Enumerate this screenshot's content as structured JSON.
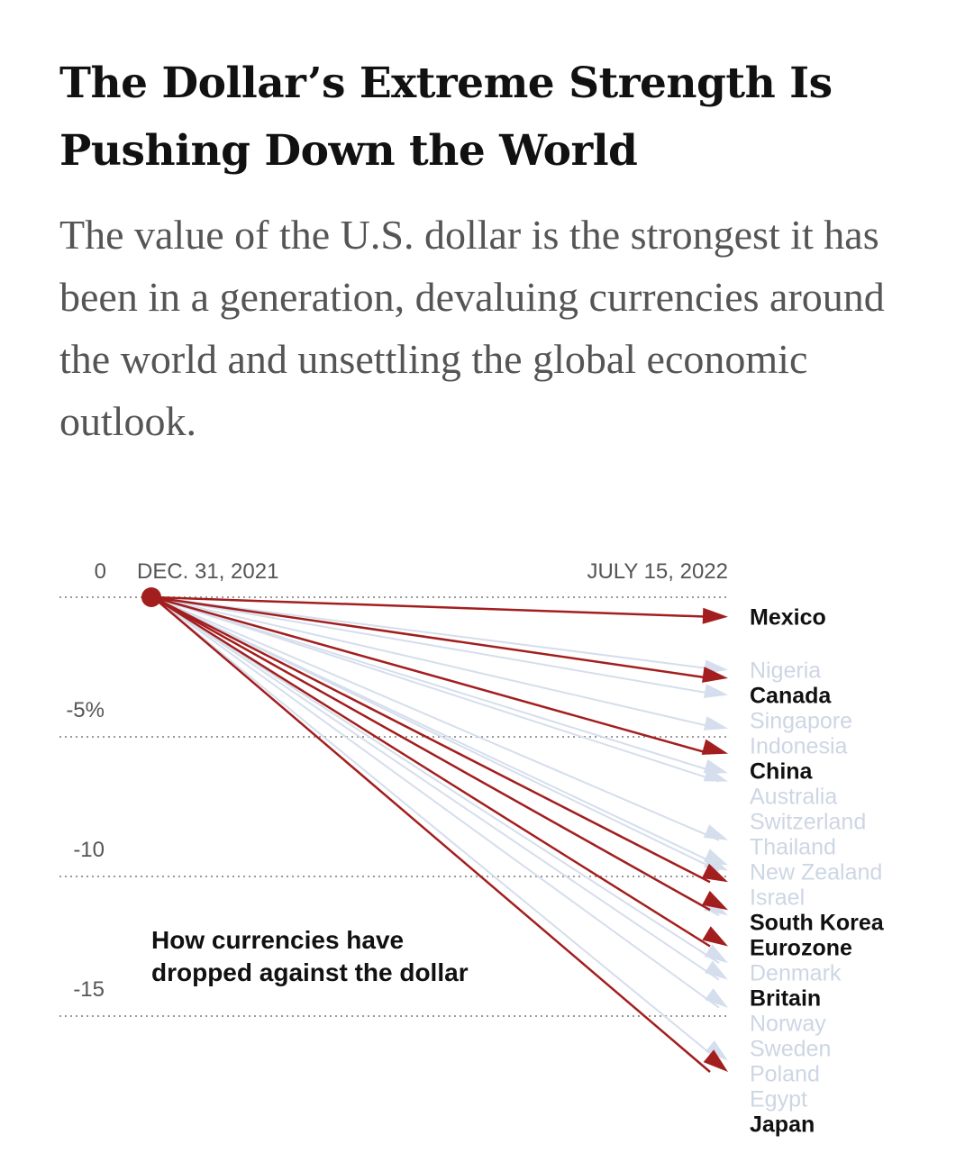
{
  "title": "The Dollar’s Extreme Strength Is Pushing Down the World",
  "subtitle": "The value of the U.S. dollar is the strongest it has been in a generation, devaluing currencies around the world and unsettling the global economic outlook.",
  "chart_data": {
    "type": "slope",
    "title": "How currencies have dropped against the dollar",
    "x": [
      "DEC. 31, 2021",
      "JULY 15, 2022"
    ],
    "start_value": 0,
    "yticks": [
      {
        "v": 0,
        "label": "0"
      },
      {
        "v": -5,
        "label": "-5%"
      },
      {
        "v": -10,
        "label": "-10"
      },
      {
        "v": -15,
        "label": "-15"
      }
    ],
    "ylim": [
      -17.5,
      0
    ],
    "colors": {
      "highlight": "#a31e1e",
      "other": "#d5deec",
      "highlight_text": "#111111",
      "other_text": "#cdd6e4"
    },
    "series": [
      {
        "name": "Mexico",
        "value": -0.7,
        "highlight": true
      },
      {
        "name": "Nigeria",
        "value": -2.6,
        "highlight": false
      },
      {
        "name": "Canada",
        "value": -2.9,
        "highlight": true
      },
      {
        "name": "Singapore",
        "value": -3.5,
        "highlight": false
      },
      {
        "name": "Indonesia",
        "value": -4.7,
        "highlight": false
      },
      {
        "name": "China",
        "value": -5.6,
        "highlight": true
      },
      {
        "name": "Australia",
        "value": -6.3,
        "highlight": false
      },
      {
        "name": "Switzerland",
        "value": -6.6,
        "highlight": false
      },
      {
        "name": "Thailand",
        "value": -8.7,
        "highlight": false
      },
      {
        "name": "New Zealand",
        "value": -9.6,
        "highlight": false
      },
      {
        "name": "Israel",
        "value": -9.8,
        "highlight": false
      },
      {
        "name": "South Korea",
        "value": -10.2,
        "highlight": true
      },
      {
        "name": "Eurozone",
        "value": -11.2,
        "highlight": true
      },
      {
        "name": "Denmark",
        "value": -11.4,
        "highlight": false
      },
      {
        "name": "Britain",
        "value": -12.5,
        "highlight": true
      },
      {
        "name": "Norway",
        "value": -13.1,
        "highlight": false
      },
      {
        "name": "Sweden",
        "value": -13.7,
        "highlight": false
      },
      {
        "name": "Poland",
        "value": -14.7,
        "highlight": false
      },
      {
        "name": "Egypt",
        "value": -16.6,
        "highlight": false
      },
      {
        "name": "Japan",
        "value": -17.0,
        "highlight": true
      }
    ]
  }
}
